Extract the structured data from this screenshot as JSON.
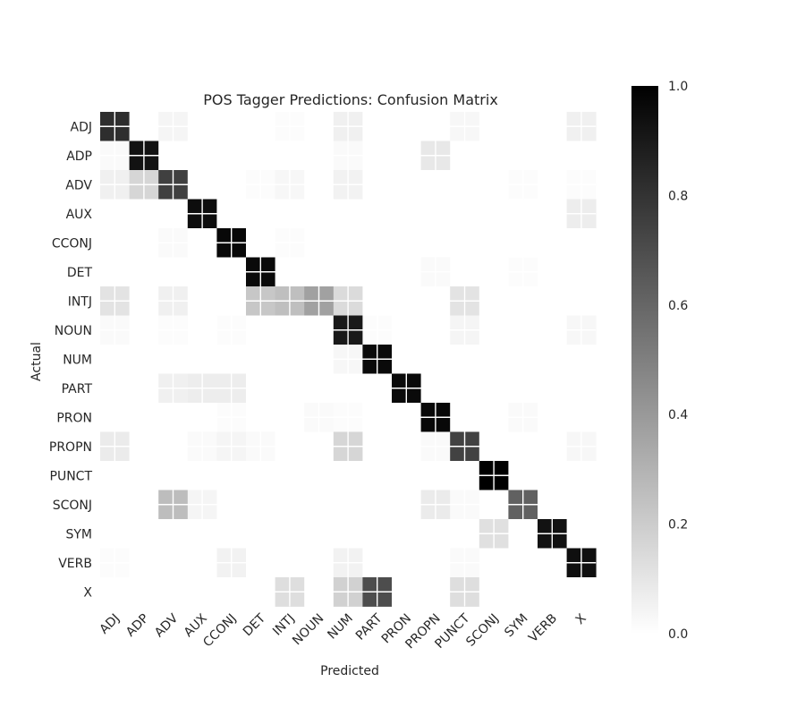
{
  "chart_data": {
    "type": "heatmap",
    "title": "POS Tagger Predictions: Confusion Matrix",
    "xlabel": "Predicted",
    "ylabel": "Actual",
    "x_categories": [
      "ADJ",
      "ADP",
      "ADV",
      "AUX",
      "CCONJ",
      "DET",
      "INTJ",
      "NOUN",
      "NUM",
      "PART",
      "PRON",
      "PROPN",
      "PUNCT",
      "SCONJ",
      "SYM",
      "VERB",
      "X"
    ],
    "y_categories": [
      "ADJ",
      "ADP",
      "ADV",
      "AUX",
      "CCONJ",
      "DET",
      "INTJ",
      "NOUN",
      "NUM",
      "PART",
      "PRON",
      "PROPN",
      "PUNCT",
      "SCONJ",
      "SYM",
      "VERB",
      "X"
    ],
    "values": [
      [
        0.82,
        0.0,
        0.04,
        0.0,
        0.0,
        0.0,
        0.01,
        0.0,
        0.06,
        0.0,
        0.0,
        0.0,
        0.03,
        0.0,
        0.0,
        0.0,
        0.06
      ],
      [
        0.02,
        0.93,
        0.0,
        0.0,
        0.0,
        0.0,
        0.0,
        0.0,
        0.02,
        0.0,
        0.0,
        0.09,
        0.0,
        0.0,
        0.0,
        0.0,
        0.0
      ],
      [
        0.06,
        0.16,
        0.75,
        0.0,
        0.0,
        0.01,
        0.03,
        0.0,
        0.05,
        0.0,
        0.0,
        0.0,
        0.0,
        0.0,
        0.01,
        0.0,
        0.01
      ],
      [
        0.0,
        0.0,
        0.0,
        0.95,
        0.0,
        0.0,
        0.0,
        0.0,
        0.0,
        0.0,
        0.0,
        0.0,
        0.0,
        0.0,
        0.0,
        0.0,
        0.07
      ],
      [
        0.0,
        0.0,
        0.02,
        0.0,
        0.97,
        0.0,
        0.01,
        0.0,
        0.0,
        0.0,
        0.0,
        0.0,
        0.0,
        0.0,
        0.0,
        0.0,
        0.0
      ],
      [
        0.0,
        0.0,
        0.0,
        0.0,
        0.0,
        0.96,
        0.0,
        0.0,
        0.0,
        0.0,
        0.0,
        0.02,
        0.0,
        0.0,
        0.01,
        0.0,
        0.0
      ],
      [
        0.11,
        0.0,
        0.06,
        0.0,
        0.0,
        0.22,
        0.25,
        0.37,
        0.14,
        0.0,
        0.0,
        0.0,
        0.11,
        0.0,
        0.0,
        0.0,
        0.0
      ],
      [
        0.02,
        0.0,
        0.01,
        0.0,
        0.01,
        0.0,
        0.0,
        0.0,
        0.9,
        0.01,
        0.0,
        0.0,
        0.04,
        0.0,
        0.0,
        0.0,
        0.03
      ],
      [
        0.0,
        0.0,
        0.0,
        0.0,
        0.0,
        0.0,
        0.0,
        0.0,
        0.03,
        0.96,
        0.0,
        0.0,
        0.0,
        0.0,
        0.0,
        0.0,
        0.0
      ],
      [
        0.0,
        0.0,
        0.06,
        0.07,
        0.07,
        0.0,
        0.0,
        0.0,
        0.0,
        0.0,
        0.96,
        0.0,
        0.0,
        0.0,
        0.0,
        0.0,
        0.0
      ],
      [
        0.0,
        0.0,
        0.0,
        0.0,
        0.01,
        0.0,
        0.0,
        0.02,
        0.01,
        0.0,
        0.0,
        0.97,
        0.0,
        0.0,
        0.02,
        0.0,
        0.0
      ],
      [
        0.08,
        0.0,
        0.0,
        0.02,
        0.04,
        0.02,
        0.0,
        0.0,
        0.16,
        0.0,
        0.0,
        0.02,
        0.74,
        0.0,
        0.0,
        0.0,
        0.03
      ],
      [
        0.0,
        0.0,
        0.0,
        0.0,
        0.0,
        0.0,
        0.0,
        0.0,
        0.0,
        0.0,
        0.0,
        0.0,
        0.0,
        1.0,
        0.0,
        0.0,
        0.0
      ],
      [
        0.0,
        0.0,
        0.26,
        0.04,
        0.0,
        0.0,
        0.0,
        0.0,
        0.0,
        0.0,
        0.0,
        0.08,
        0.02,
        0.0,
        0.62,
        0.0,
        0.0
      ],
      [
        0.0,
        0.0,
        0.0,
        0.0,
        0.0,
        0.0,
        0.0,
        0.0,
        0.0,
        0.0,
        0.0,
        0.0,
        0.0,
        0.12,
        0.0,
        0.93,
        0.0
      ],
      [
        0.01,
        0.0,
        0.0,
        0.0,
        0.05,
        0.0,
        0.0,
        0.0,
        0.05,
        0.0,
        0.0,
        0.0,
        0.02,
        0.0,
        0.0,
        0.0,
        0.94
      ],
      [
        0.0,
        0.0,
        0.0,
        0.0,
        0.0,
        0.0,
        0.13,
        0.0,
        0.18,
        0.7,
        0.0,
        0.0,
        0.13,
        0.0,
        0.0,
        0.0,
        0.0
      ]
    ],
    "colormap": "greys",
    "vmin": 0.0,
    "vmax": 1.0,
    "colorbar_ticks": [
      "0.0",
      "0.2",
      "0.4",
      "0.6",
      "0.8",
      "1.0"
    ],
    "legend": "colorbar-right",
    "grid": true,
    "colors": {
      "low": "#ffffff",
      "high": "#000000",
      "grid": "#ffffff",
      "text": "#262626"
    }
  }
}
